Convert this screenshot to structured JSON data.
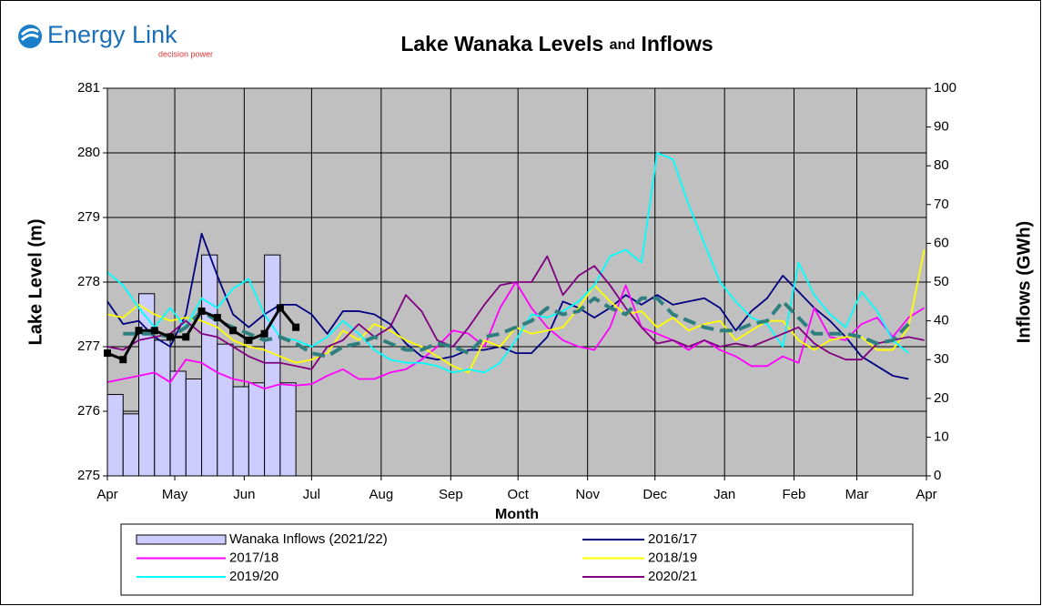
{
  "logo": {
    "name": "Energy Link",
    "tagline": "decision power"
  },
  "chart_data": {
    "type": "line",
    "title_parts": [
      "Lake Wanaka Levels",
      "and",
      "Inflows"
    ],
    "xlabel": "Month",
    "ylabel": "Lake Level (m)",
    "y2label": "Inflows (GWh)",
    "x": [
      0,
      1,
      2,
      3,
      4,
      5,
      6,
      7,
      8,
      9,
      10,
      11,
      12,
      13,
      14,
      15,
      16,
      17,
      18,
      19,
      20,
      21,
      22,
      23,
      24,
      25,
      26,
      27,
      28,
      29,
      30,
      31,
      32,
      33,
      34,
      35,
      36,
      37,
      38,
      39,
      40,
      41,
      42,
      43,
      44,
      45,
      46,
      47,
      48,
      49,
      50,
      51,
      52
    ],
    "xlim": [
      0,
      52.14
    ],
    "xticks": [
      {
        "value": 0,
        "label": "Apr"
      },
      {
        "value": 4.29,
        "label": "May"
      },
      {
        "value": 8.71,
        "label": "Jun"
      },
      {
        "value": 13,
        "label": "Jul"
      },
      {
        "value": 17.43,
        "label": "Aug"
      },
      {
        "value": 21.86,
        "label": "Sep"
      },
      {
        "value": 26.14,
        "label": "Oct"
      },
      {
        "value": 30.57,
        "label": "Nov"
      },
      {
        "value": 34.86,
        "label": "Dec"
      },
      {
        "value": 39.29,
        "label": "Jan"
      },
      {
        "value": 43.71,
        "label": "Feb"
      },
      {
        "value": 47.71,
        "label": "Mar"
      },
      {
        "value": 52.14,
        "label": "Apr"
      }
    ],
    "ylim": [
      275,
      281
    ],
    "yticks": [
      275,
      276,
      277,
      278,
      279,
      280,
      281
    ],
    "y2lim": [
      0,
      100
    ],
    "y2ticks": [
      0,
      10,
      20,
      30,
      40,
      50,
      60,
      70,
      80,
      90,
      100
    ],
    "grid": true,
    "background": "#c0c0c0",
    "series": [
      {
        "name": "Wanaka Inflows (2021/22)",
        "type": "bar",
        "axis": "y2",
        "color": "#ccccff",
        "values": [
          21,
          16,
          47,
          35,
          27,
          25,
          57,
          34,
          23,
          24,
          57,
          24,
          null,
          null,
          null,
          null,
          null,
          null,
          null,
          null,
          null,
          null,
          null,
          null,
          null,
          null,
          null,
          null,
          null,
          null,
          null,
          null,
          null,
          null,
          null,
          null,
          null,
          null,
          null,
          null,
          null,
          null,
          null,
          null,
          null,
          null,
          null,
          null,
          null,
          null,
          null,
          null,
          null
        ]
      },
      {
        "name": "2016/17",
        "color": "#000080",
        "values": [
          277.7,
          277.35,
          277.4,
          277.15,
          277.0,
          277.5,
          278.75,
          278.1,
          277.5,
          277.3,
          277.5,
          277.65,
          277.65,
          277.5,
          277.2,
          277.55,
          277.55,
          277.5,
          277.35,
          277.05,
          276.85,
          276.8,
          276.85,
          276.95,
          276.95,
          277.0,
          276.9,
          276.9,
          277.15,
          277.7,
          277.6,
          277.45,
          277.6,
          277.8,
          277.65,
          277.8,
          277.65,
          277.7,
          277.75,
          277.6,
          277.25,
          277.55,
          277.75,
          278.1,
          277.85,
          277.6,
          277.4,
          277.15,
          276.85,
          276.7,
          276.55,
          276.5,
          null
        ]
      },
      {
        "name": "2017/18",
        "color": "#ff00ff",
        "values": [
          276.45,
          276.5,
          276.55,
          276.6,
          276.45,
          276.8,
          276.75,
          276.6,
          276.5,
          276.45,
          276.35,
          276.42,
          276.4,
          276.42,
          276.55,
          276.65,
          276.5,
          276.5,
          276.6,
          276.65,
          276.8,
          277.0,
          277.25,
          277.2,
          277.0,
          277.6,
          278.0,
          277.6,
          277.3,
          277.1,
          277.0,
          276.95,
          277.3,
          277.95,
          277.3,
          277.2,
          277.1,
          276.95,
          277.1,
          276.95,
          276.85,
          276.7,
          276.7,
          276.85,
          276.75,
          277.6,
          277.15,
          277.1,
          277.35,
          277.45,
          277.15,
          277.45,
          277.6
        ]
      },
      {
        "name": "2018/19",
        "color": "#ffff00",
        "values": [
          277.5,
          277.45,
          277.65,
          277.5,
          277.4,
          277.45,
          277.4,
          277.3,
          277.1,
          277.0,
          276.95,
          276.85,
          276.75,
          276.8,
          276.9,
          277.25,
          277.1,
          277.35,
          277.25,
          277.1,
          277.0,
          276.85,
          276.7,
          276.6,
          277.1,
          277.0,
          277.3,
          277.2,
          277.25,
          277.3,
          277.6,
          277.95,
          277.7,
          277.5,
          277.55,
          277.3,
          277.45,
          277.25,
          277.35,
          277.4,
          277.1,
          277.25,
          277.4,
          277.4,
          277.1,
          276.95,
          277.1,
          277.15,
          277.15,
          276.95,
          276.95,
          277.3,
          278.5
        ]
      },
      {
        "name": "2019/20",
        "color": "#00ffff",
        "values": [
          278.15,
          277.95,
          277.6,
          277.3,
          277.6,
          277.3,
          277.75,
          277.6,
          277.9,
          278.05,
          277.5,
          277.15,
          277.1,
          277.0,
          277.15,
          277.4,
          277.2,
          276.95,
          276.8,
          276.75,
          276.75,
          276.7,
          276.6,
          276.65,
          276.6,
          276.75,
          277.1,
          277.5,
          277.45,
          277.55,
          277.7,
          277.95,
          278.4,
          278.5,
          278.3,
          280.0,
          279.9,
          279.2,
          278.6,
          278.0,
          277.7,
          277.45,
          277.35,
          277.0,
          278.3,
          277.8,
          277.5,
          277.3,
          277.85,
          277.55,
          277.1,
          276.9,
          null
        ]
      },
      {
        "name": "2020/21",
        "color": "#800080",
        "values": [
          277.0,
          276.95,
          277.1,
          277.15,
          277.2,
          277.4,
          277.2,
          277.15,
          277.0,
          276.85,
          276.75,
          276.75,
          276.7,
          276.65,
          277.0,
          277.1,
          277.35,
          277.15,
          277.3,
          277.8,
          277.55,
          277.1,
          277.0,
          277.3,
          277.65,
          277.95,
          278.0,
          278.0,
          278.4,
          277.8,
          278.1,
          278.25,
          277.95,
          277.6,
          277.3,
          277.05,
          277.1,
          277.0,
          277.1,
          277.0,
          277.05,
          277.0,
          277.1,
          277.2,
          277.3,
          277.05,
          276.9,
          276.8,
          276.8,
          277.05,
          277.1,
          277.15,
          277.1
        ]
      },
      {
        "color": "#2f7f7f",
        "dashed": true,
        "values": [
          null,
          277.2,
          277.2,
          277.2,
          277.15,
          277.3,
          277.55,
          277.4,
          277.3,
          277.2,
          277.1,
          277.15,
          277.05,
          276.9,
          276.85,
          277.0,
          277.05,
          277.15,
          277.05,
          276.95,
          276.95,
          277.05,
          277.0,
          276.9,
          277.15,
          277.2,
          277.3,
          277.4,
          277.6,
          277.5,
          277.55,
          277.75,
          277.6,
          277.5,
          277.75,
          277.75,
          277.5,
          277.4,
          277.3,
          277.25,
          277.25,
          277.35,
          277.4,
          277.7,
          277.45,
          277.2,
          277.2,
          277.2,
          277.15,
          277.05,
          277.1,
          277.35,
          null
        ]
      },
      {
        "color": "#000000",
        "markers": true,
        "values": [
          276.9,
          276.8,
          277.25,
          277.25,
          277.15,
          277.15,
          277.55,
          277.45,
          277.25,
          277.1,
          277.2,
          277.6,
          277.3,
          null,
          null,
          null,
          null,
          null,
          null,
          null,
          null,
          null,
          null,
          null,
          null,
          null,
          null,
          null,
          null,
          null,
          null,
          null,
          null,
          null,
          null,
          null,
          null,
          null,
          null,
          null,
          null,
          null,
          null,
          null,
          null,
          null,
          null,
          null,
          null,
          null,
          null,
          null,
          null
        ]
      }
    ]
  }
}
